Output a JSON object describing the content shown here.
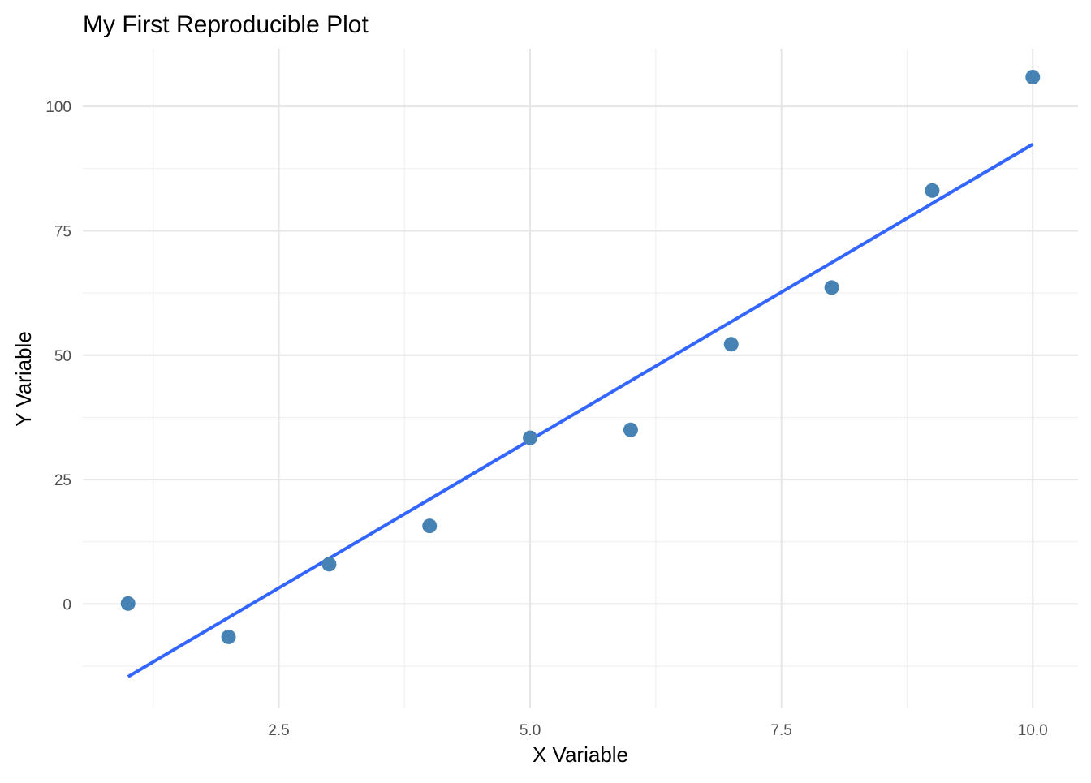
{
  "chart_data": {
    "type": "scatter",
    "title": "My First Reproducible Plot",
    "xlabel": "X Variable",
    "ylabel": "Y Variable",
    "xlim": [
      0.55,
      10.45
    ],
    "ylim": [
      -20.8,
      111.6
    ],
    "x_ticks": [
      2.5,
      5.0,
      7.5,
      10.0
    ],
    "x_tick_labels": [
      "2.5",
      "5.0",
      "7.5",
      "10.0"
    ],
    "y_ticks": [
      0,
      25,
      50,
      75,
      100
    ],
    "y_tick_labels": [
      "0",
      "25",
      "50",
      "75",
      "100"
    ],
    "grid": true,
    "series": [
      {
        "type": "scatter",
        "x": [
          1,
          2,
          3,
          4,
          5,
          6,
          7,
          8,
          9,
          10
        ],
        "y": [
          0.1,
          -6.6,
          8.0,
          15.7,
          33.4,
          35.0,
          52.2,
          63.6,
          83.1,
          105.9
        ],
        "color": "#4682B4"
      },
      {
        "type": "line",
        "x": [
          1,
          10
        ],
        "y": [
          -14.6,
          92.4
        ],
        "color": "#3366FF"
      }
    ]
  }
}
